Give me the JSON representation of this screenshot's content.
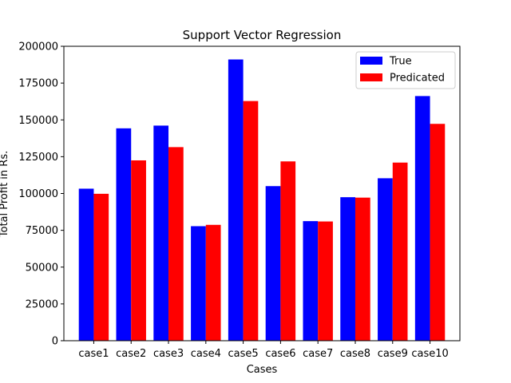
{
  "chart_data": {
    "type": "bar",
    "title": "Support Vector Regression",
    "xlabel": "Cases",
    "ylabel": "Total Profit in Rs.",
    "categories": [
      "case1",
      "case2",
      "case3",
      "case4",
      "case5",
      "case6",
      "case7",
      "case8",
      "case9",
      "case10"
    ],
    "series": [
      {
        "name": "True",
        "color": "#0000ff",
        "values": [
          103282,
          144259,
          146122,
          77799,
          191050,
          105008,
          81229,
          97484,
          110353,
          166188
        ]
      },
      {
        "name": "Predicated",
        "color": "#ff0000",
        "values": [
          99800,
          122500,
          131500,
          78700,
          162800,
          121800,
          81000,
          97200,
          121000,
          147300
        ]
      }
    ],
    "ylim": [
      0,
      200000
    ],
    "yticks": [
      0,
      25000,
      50000,
      75000,
      100000,
      125000,
      150000,
      175000,
      200000
    ],
    "grid": false,
    "legend_position": "top-right"
  }
}
